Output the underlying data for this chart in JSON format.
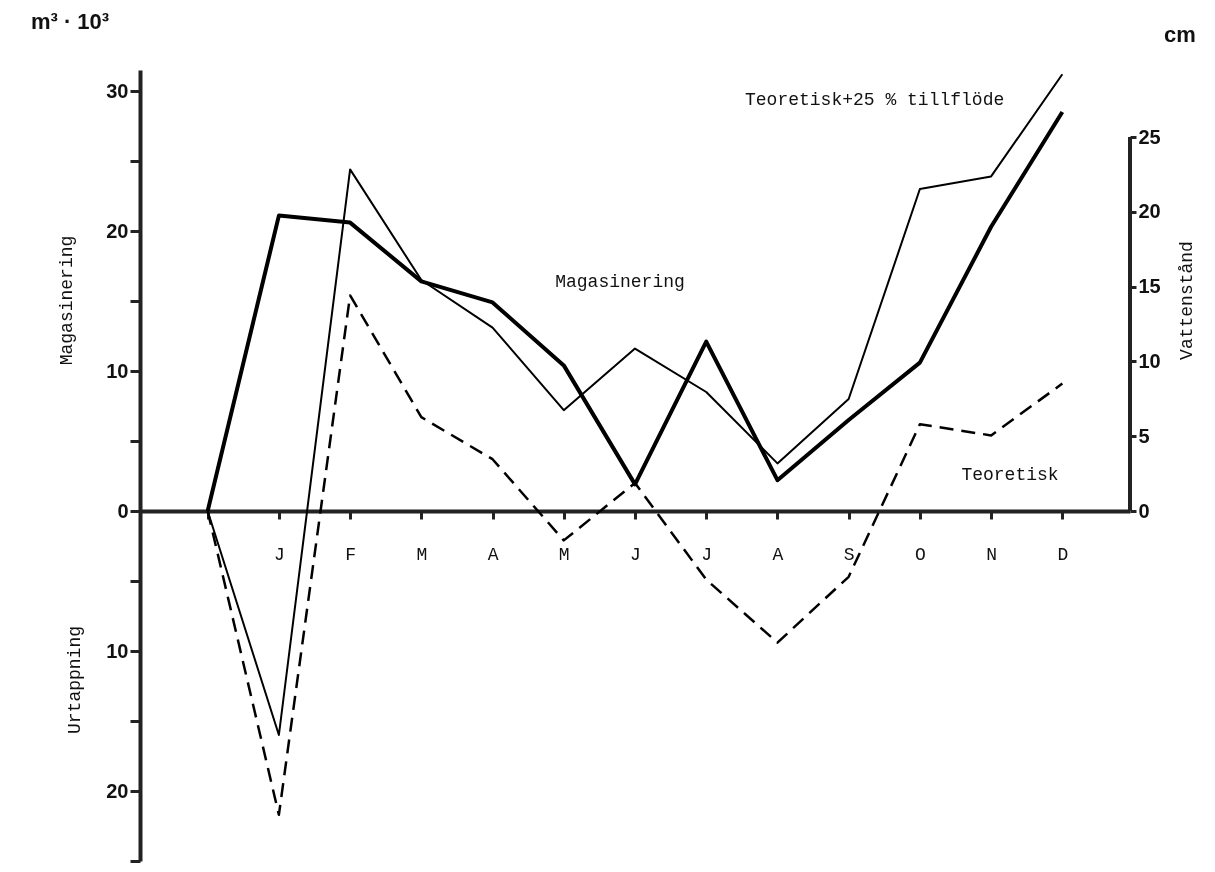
{
  "chart_data": {
    "type": "line",
    "ylabel": "Magasinering",
    "y2label": "Vattenstånd",
    "annotations": [
      "m³ · 10³",
      "cm",
      "Urtappning"
    ],
    "categories": [
      null,
      "J",
      "F",
      "M",
      "A",
      "M",
      "J",
      "J",
      "A",
      "S",
      "O",
      "N",
      "D"
    ],
    "series": [
      {
        "name": "Magasinering",
        "color": "#000000",
        "line_style": "solid",
        "values": [
          0,
          21.1,
          20.6,
          16.4,
          14.9,
          10.4,
          1.9,
          12.1,
          2.2,
          6.5,
          10.6,
          20.3,
          28.5
        ]
      },
      {
        "name": "Teoretisk+25 % tillflöde",
        "color": "#000000",
        "line_style": "solid",
        "values": [
          0,
          -16.0,
          24.4,
          16.5,
          13.1,
          7.2,
          11.6,
          8.5,
          3.4,
          8.0,
          23.0,
          23.9,
          31.2
        ]
      },
      {
        "name": "Teoretisk",
        "color": "#000000",
        "line_style": "dashed",
        "values": [
          0,
          -21.7,
          15.4,
          6.7,
          3.7,
          -2.1,
          2.0,
          -4.9,
          -9.4,
          -4.7,
          6.2,
          5.4,
          9.1
        ]
      }
    ],
    "ylim": [
      -25,
      31.5
    ],
    "yticks": [
      {
        "value": -25,
        "label": null
      },
      {
        "value": -20,
        "label": "20"
      },
      {
        "value": -15,
        "label": null
      },
      {
        "value": -10,
        "label": "10"
      },
      {
        "value": -5,
        "label": null
      },
      0,
      {
        "value": 5,
        "label": null
      },
      10,
      {
        "value": 15,
        "label": null
      },
      20,
      {
        "value": 25,
        "label": null
      },
      30
    ],
    "y2lim": [
      0,
      25
    ],
    "y2ticks": [
      0,
      5,
      10,
      15,
      20,
      25
    ]
  }
}
